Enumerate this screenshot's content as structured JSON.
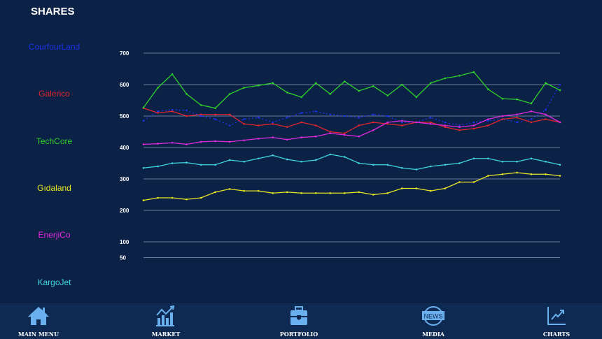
{
  "title": "SHARES",
  "chart_data": {
    "type": "line",
    "title": "SHARES",
    "ylim": [
      50,
      700
    ],
    "yticks": [
      700,
      600,
      500,
      400,
      300,
      200,
      100,
      50
    ],
    "grid": true,
    "legend_placement": "left",
    "series": [
      {
        "name": "CourfourLand",
        "color": "#1a33ee",
        "values": [
          485,
          515,
          520,
          518,
          500,
          490,
          470,
          490,
          495,
          480,
          495,
          510,
          515,
          505,
          500,
          495,
          505,
          500,
          480,
          480,
          495,
          480,
          470,
          480,
          485,
          490,
          480,
          490,
          520,
          600
        ]
      },
      {
        "name": "Galerico",
        "color": "#e0262e",
        "values": [
          525,
          510,
          515,
          500,
          505,
          505,
          505,
          475,
          470,
          475,
          465,
          480,
          470,
          450,
          445,
          470,
          480,
          475,
          470,
          480,
          480,
          465,
          455,
          460,
          470,
          490,
          495,
          480,
          490,
          480
        ]
      },
      {
        "name": "TechCore",
        "color": "#2fd12a",
        "values": [
          527,
          590,
          633,
          570,
          535,
          525,
          570,
          590,
          597,
          605,
          575,
          560,
          605,
          570,
          610,
          580,
          595,
          565,
          600,
          560,
          605,
          620,
          628,
          640,
          585,
          555,
          553,
          540,
          605,
          582
        ]
      },
      {
        "name": "Gıdaland",
        "color": "#e8e825",
        "values": [
          232,
          240,
          240,
          235,
          240,
          258,
          268,
          262,
          262,
          255,
          258,
          255,
          255,
          255,
          255,
          258,
          250,
          255,
          270,
          270,
          262,
          270,
          290,
          290,
          310,
          315,
          320,
          315,
          315,
          310
        ]
      },
      {
        "name": "EnerjiCo",
        "color": "#e02ae0",
        "values": [
          410,
          412,
          415,
          410,
          418,
          420,
          418,
          423,
          428,
          432,
          425,
          432,
          435,
          445,
          440,
          435,
          455,
          480,
          485,
          480,
          475,
          470,
          465,
          470,
          490,
          500,
          505,
          515,
          505,
          480
        ]
      },
      {
        "name": "KargoJet",
        "color": "#3fd6e0",
        "values": [
          335,
          340,
          350,
          352,
          345,
          345,
          360,
          355,
          365,
          375,
          362,
          355,
          360,
          378,
          370,
          350,
          345,
          345,
          335,
          330,
          340,
          345,
          350,
          365,
          365,
          355,
          355,
          365,
          355,
          345
        ]
      }
    ]
  },
  "nav": [
    {
      "label": "MAIN MENU",
      "icon": "home-icon"
    },
    {
      "label": "MARKET",
      "icon": "market-chart-icon"
    },
    {
      "label": "PORTFOLIO",
      "icon": "briefcase-icon"
    },
    {
      "label": "MEDIA",
      "icon": "news-globe-icon",
      "icon_text": "NEWS"
    },
    {
      "label": "CHARTS",
      "icon": "line-chart-icon"
    }
  ]
}
